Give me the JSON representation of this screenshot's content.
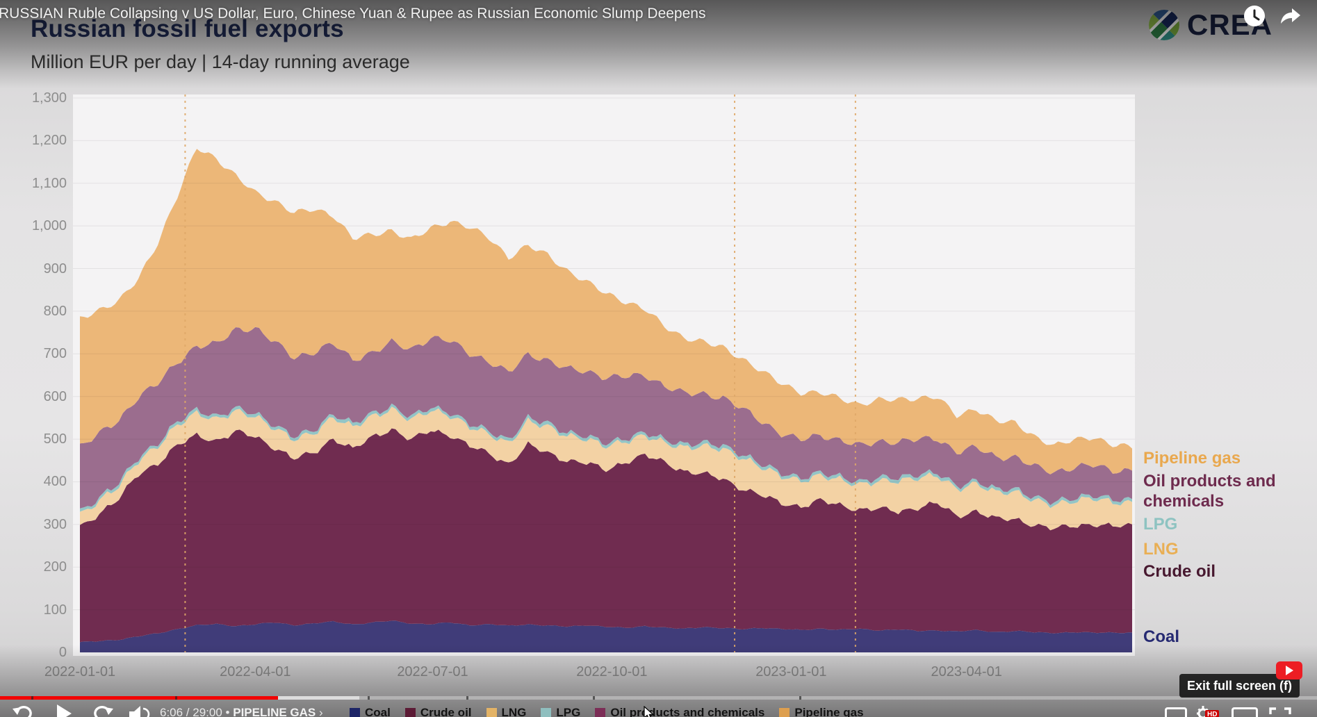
{
  "youtube": {
    "video_title": "RUSSIAN Ruble Collapsing v US Dollar, Euro, Chinese Yuan & Rupee as Russian Economic Slump Deepens",
    "time_display": "6:06 / 29:00",
    "separator": "•",
    "chapter_title": "PIPELINE GAS",
    "chapter_chevron": "›",
    "tooltip": "Exit full screen (f)",
    "hd_badge": "HD",
    "progress": {
      "played_pct": 21.1,
      "buffered_pct": 27.3,
      "chapter_gap_pct": [
        2.4,
        13.3,
        27.9,
        35.4,
        45.0,
        60.7
      ]
    }
  },
  "chart": {
    "title": "Russian fossil fuel exports",
    "subtitle": "Million EUR per day | 14-day running average",
    "brand": "CREA",
    "side_legend": [
      {
        "label": "Pipeline gas",
        "color": "#e9a84e"
      },
      {
        "label": "Oil products and chemicals",
        "color": "#6e2b4e"
      },
      {
        "label": "LPG",
        "color": "#8ec3c1"
      },
      {
        "label": "LNG",
        "color": "#e9af55"
      },
      {
        "label": "Crude oil",
        "color": "#47182f"
      },
      {
        "label": "Coal",
        "color": "#262a72"
      }
    ],
    "bottom_legend": [
      {
        "label": "Coal",
        "color": "#1d2566"
      },
      {
        "label": "Crude oil",
        "color": "#5c1a35"
      },
      {
        "label": "LNG",
        "color": "#e3b366"
      },
      {
        "label": "LPG",
        "color": "#8fbfbf"
      },
      {
        "label": "Oil products and chemicals",
        "color": "#7c2d56"
      },
      {
        "label": "Pipeline gas",
        "color": "#dd9f4f"
      }
    ]
  },
  "chart_data": {
    "type": "area",
    "stacked": true,
    "title": "Russian fossil fuel exports",
    "subtitle": "Million EUR per day | 14-day running average",
    "unit": "Million EUR per day",
    "x_start_date": "2022-01-01",
    "grid": "horizontal",
    "legend_position": "right",
    "ylim": [
      0,
      1300
    ],
    "y_tick_step": 100,
    "y_tick_labels": [
      "0",
      "100",
      "200",
      "300",
      "400",
      "500",
      "600",
      "700",
      "800",
      "900",
      "1,000",
      "1,100",
      "1,200",
      "1,300"
    ],
    "x_ticks": [
      {
        "day": 0,
        "label": "2022-01-01"
      },
      {
        "day": 90,
        "label": "2022-04-01"
      },
      {
        "day": 181,
        "label": "2022-07-01"
      },
      {
        "day": 273,
        "label": "2022-10-01"
      },
      {
        "day": 365,
        "label": "2023-01-01"
      },
      {
        "day": 455,
        "label": "2023-04-01"
      }
    ],
    "event_markers": [
      {
        "day": 54,
        "date": "2022-02-24"
      },
      {
        "day": 336,
        "date": "2022-12-05"
      },
      {
        "day": 398,
        "date": "2023-02-05"
      }
    ],
    "x_days": [
      0,
      10,
      20,
      30,
      40,
      50,
      60,
      70,
      80,
      90,
      100,
      110,
      120,
      130,
      140,
      150,
      160,
      170,
      180,
      190,
      200,
      210,
      220,
      230,
      240,
      250,
      260,
      270,
      280,
      290,
      300,
      310,
      320,
      330,
      340,
      350,
      360,
      370,
      380,
      390,
      400,
      410,
      420,
      430,
      440,
      450,
      460,
      470,
      480,
      490,
      500,
      510,
      520,
      530,
      540
    ],
    "series": [
      {
        "name": "Coal",
        "color": "#403c79",
        "values": [
          24,
          26,
          30,
          38,
          44,
          55,
          64,
          66,
          62,
          66,
          70,
          64,
          68,
          72,
          66,
          70,
          74,
          68,
          66,
          70,
          64,
          66,
          62,
          66,
          63,
          60,
          64,
          60,
          57,
          62,
          58,
          55,
          60,
          57,
          54,
          58,
          55,
          52,
          56,
          53,
          55,
          52,
          54,
          50,
          52,
          49,
          52,
          48,
          50,
          47,
          46,
          47,
          46,
          47,
          46
        ]
      },
      {
        "name": "Crude oil",
        "color": "#702c50",
        "values": [
          270,
          300,
          330,
          380,
          400,
          430,
          445,
          430,
          455,
          440,
          410,
          390,
          400,
          430,
          410,
          435,
          450,
          430,
          455,
          440,
          420,
          400,
          380,
          420,
          405,
          390,
          380,
          368,
          390,
          400,
          388,
          370,
          358,
          350,
          330,
          310,
          295,
          290,
          300,
          292,
          280,
          285,
          276,
          290,
          298,
          270,
          280,
          265,
          262,
          252,
          244,
          250,
          255,
          248,
          252
        ]
      },
      {
        "name": "LNG",
        "color": "#f3d2a4",
        "values": [
          28,
          30,
          30,
          32,
          40,
          48,
          52,
          50,
          48,
          47,
          46,
          45,
          46,
          50,
          52,
          48,
          46,
          47,
          47,
          46,
          45,
          46,
          48,
          55,
          62,
          58,
          56,
          56,
          48,
          46,
          46,
          55,
          65,
          70,
          72,
          66,
          64,
          60,
          58,
          60,
          58,
          64,
          72,
          70,
          64,
          64,
          64,
          62,
          64,
          58,
          55,
          58,
          62,
          56,
          52
        ]
      },
      {
        "name": "LPG",
        "color": "#93c5c6",
        "values": [
          7,
          7,
          8,
          7,
          7,
          8,
          8,
          7,
          7,
          7,
          7,
          7,
          7,
          8,
          8,
          7,
          7,
          7,
          7,
          7,
          7,
          7,
          8,
          8,
          8,
          7,
          7,
          7,
          7,
          7,
          7,
          8,
          8,
          8,
          8,
          7,
          7,
          7,
          7,
          7,
          7,
          8,
          8,
          8,
          7,
          7,
          7,
          7,
          7,
          7,
          7,
          7,
          7,
          7,
          7
        ]
      },
      {
        "name": "Oil products and chemicals",
        "color": "#9b6d8e",
        "values": [
          154,
          150,
          146,
          143,
          140,
          139,
          150,
          170,
          185,
          200,
          195,
          185,
          183,
          165,
          150,
          143,
          150,
          158,
          163,
          168,
          165,
          163,
          158,
          150,
          147,
          150,
          152,
          154,
          145,
          135,
          126,
          120,
          115,
          112,
          108,
          100,
          92,
          90,
          88,
          86,
          85,
          85,
          84,
          82,
          80,
          80,
          78,
          76,
          75,
          72,
          70,
          72,
          70,
          68,
          70
        ]
      },
      {
        "name": "Pipeline gas",
        "color": "#ecb778",
        "values": [
          300,
          290,
          280,
          276,
          330,
          390,
          465,
          435,
          360,
          318,
          330,
          340,
          335,
          300,
          285,
          276,
          262,
          258,
          256,
          280,
          296,
          290,
          270,
          255,
          247,
          230,
          210,
          197,
          175,
          155,
          140,
          130,
          122,
          118,
          116,
          118,
          118,
          110,
          100,
          98,
          96,
          98,
          99,
          96,
          98,
          85,
          90,
          85,
          80,
          70,
          62,
          65,
          65,
          60,
          55
        ]
      }
    ]
  }
}
